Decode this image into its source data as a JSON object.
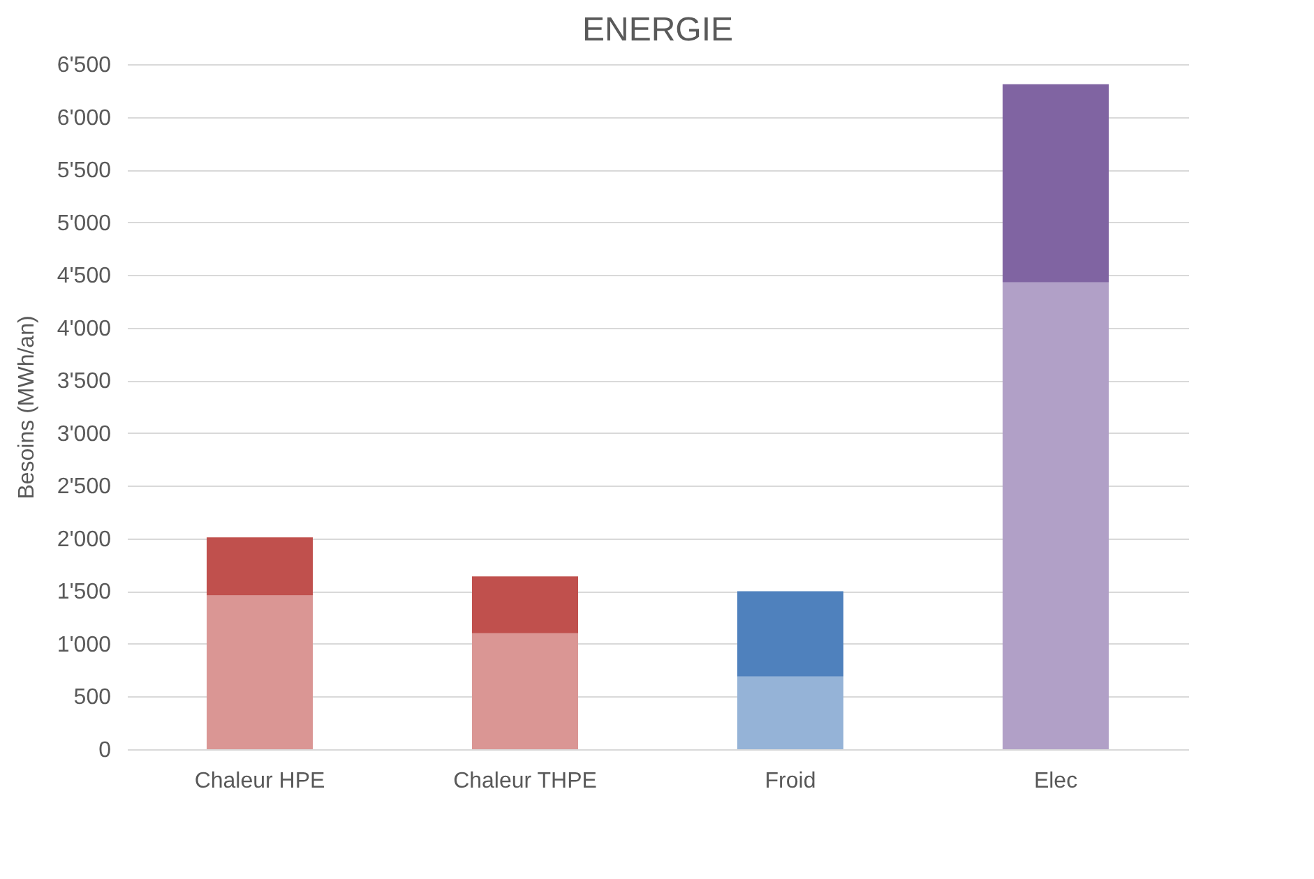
{
  "chart_data": {
    "type": "bar",
    "title": "ENERGIE",
    "ylabel": "Besoins  (MWh/an)",
    "stacked": true,
    "grid": "y",
    "categories": [
      "Chaleur HPE",
      "Chaleur THPE",
      "Froid",
      "Elec"
    ],
    "series": [
      {
        "colors": [
          "#da9694",
          "#da9694",
          "#95b3d7",
          "#b1a0c7"
        ],
        "values": [
          1460,
          1100,
          690,
          4430
        ]
      },
      {
        "colors": [
          "#c0504d",
          "#c0504d",
          "#4f81bd",
          "#8064a2"
        ],
        "values": [
          550,
          540,
          810,
          1880
        ]
      }
    ],
    "ylim": [
      0,
      6500
    ],
    "yticks": [
      0,
      500,
      {
        "value": 1000,
        "label": "1'000"
      },
      {
        "value": 1500,
        "label": "1'500"
      },
      {
        "value": 2000,
        "label": "2'000"
      },
      {
        "value": 2500,
        "label": "2'500"
      },
      {
        "value": 3000,
        "label": "3'000"
      },
      {
        "value": 3500,
        "label": "3'500"
      },
      {
        "value": 4000,
        "label": "4'000"
      },
      {
        "value": 4500,
        "label": "4'500"
      },
      {
        "value": 5000,
        "label": "5'000"
      },
      {
        "value": 5500,
        "label": "5'500"
      },
      {
        "value": 6000,
        "label": "6'000"
      },
      {
        "value": 6500,
        "label": "6'500"
      }
    ]
  }
}
